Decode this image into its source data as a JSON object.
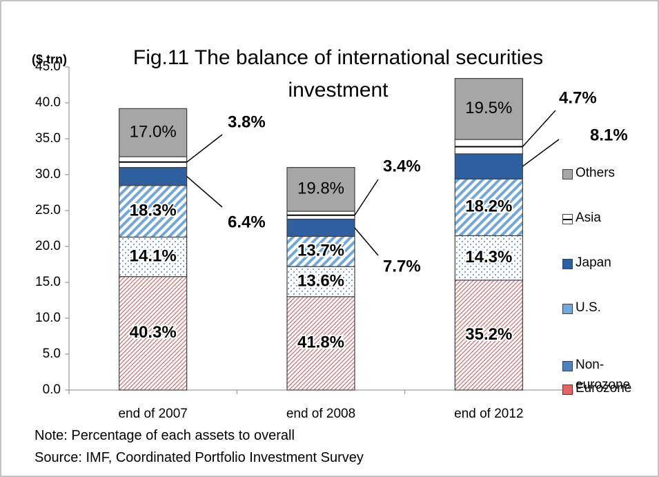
{
  "chart_data": {
    "type": "stacked_bar",
    "title": "Fig.11 The balance of international securities investment",
    "y_label": "($ trn)",
    "categories": [
      "end of 2007",
      "end of 2008",
      "end of 2012"
    ],
    "series": [
      {
        "name": "Eurozone",
        "color": "#e06666",
        "values": [
          15.8,
          13.0,
          15.3
        ],
        "percent_labels": [
          "40.3%",
          "41.8%",
          "35.2%"
        ]
      },
      {
        "name": "Non-eurozone",
        "color": "#4f81bd",
        "values": [
          5.5,
          4.2,
          6.2
        ],
        "percent_labels": [
          "14.1%",
          "13.6%",
          "14.3%"
        ]
      },
      {
        "name": "U.S.",
        "color": "#6fa8dc",
        "values": [
          7.2,
          4.2,
          7.9
        ],
        "percent_labels": [
          "18.3%",
          "13.7%",
          "18.2%"
        ]
      },
      {
        "name": "Japan",
        "color": "#2e5f9e",
        "values": [
          2.5,
          2.4,
          3.5
        ],
        "percent_labels": [
          "6.4%",
          "7.7%",
          "8.1%"
        ]
      },
      {
        "name": "Asia",
        "color": "#ffffff",
        "values": [
          1.5,
          1.1,
          2.0
        ],
        "percent_labels": [
          "3.8%",
          "3.4%",
          "4.7%"
        ]
      },
      {
        "name": "Others",
        "color": "#a6a6a6",
        "values": [
          6.7,
          6.1,
          8.5
        ],
        "percent_labels": [
          "17.0%",
          "19.8%",
          "19.5%"
        ]
      }
    ],
    "ylim": [
      0,
      45
    ],
    "yticks": [
      {
        "value": 0,
        "label": "0.0"
      },
      {
        "value": 5,
        "label": "5.0"
      },
      {
        "value": 10,
        "label": "10.0"
      },
      {
        "value": 15,
        "label": "15.0"
      },
      {
        "value": 20,
        "label": "20.0"
      },
      {
        "value": 25,
        "label": "25.0"
      },
      {
        "value": 30,
        "label": "30.0"
      },
      {
        "value": 35,
        "label": "35.0"
      },
      {
        "value": 40,
        "label": "40.0"
      },
      {
        "value": 45,
        "label": "45.0"
      }
    ],
    "notes": [
      "Note: Percentage  of each assets to overall",
      "Source: IMF, Coordinated Portfolio Investment Survey"
    ]
  }
}
